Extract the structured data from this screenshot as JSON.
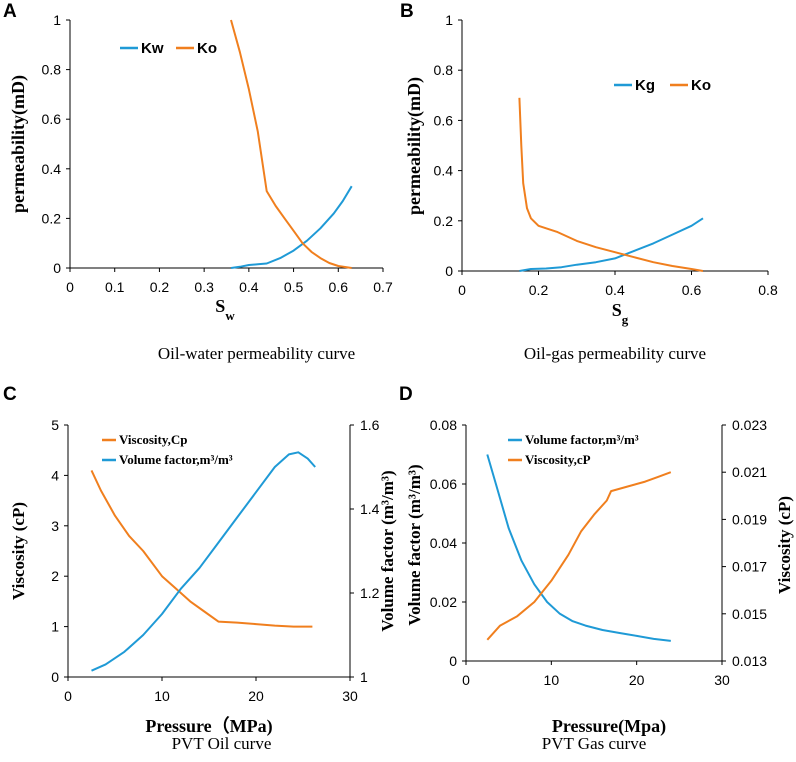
{
  "colors": {
    "blue": "#1f9ad6",
    "orange": "#f07f1e"
  },
  "chart_data": [
    {
      "panel": "A",
      "type": "line",
      "caption": "Oil-water permeability curve",
      "ylabel": "permeability(mD)",
      "xlabel": {
        "main": "S",
        "sub": "w"
      },
      "xlim": [
        0,
        0.7
      ],
      "ylim": [
        0,
        1
      ],
      "xticks": [
        "0",
        "0.1",
        "0.2",
        "0.3",
        "0.4",
        "0.5",
        "0.6",
        "0.7"
      ],
      "yticks": [
        "0",
        "0.2",
        "0.4",
        "0.6",
        "0.8",
        "1"
      ],
      "legend": [
        "Kw",
        "Ko"
      ],
      "series": [
        {
          "name": "Kw",
          "color": "blue",
          "axis": "left",
          "x": [
            0.36,
            0.38,
            0.4,
            0.42,
            0.44,
            0.47,
            0.5,
            0.53,
            0.56,
            0.59,
            0.61,
            0.63
          ],
          "y": [
            0.0,
            0.005,
            0.012,
            0.015,
            0.018,
            0.04,
            0.07,
            0.11,
            0.16,
            0.22,
            0.27,
            0.33
          ]
        },
        {
          "name": "Ko",
          "color": "orange",
          "axis": "left",
          "x": [
            0.36,
            0.38,
            0.4,
            0.42,
            0.44,
            0.46,
            0.48,
            0.5,
            0.52,
            0.54,
            0.56,
            0.58,
            0.6,
            0.63
          ],
          "y": [
            1.0,
            0.87,
            0.72,
            0.55,
            0.31,
            0.25,
            0.2,
            0.15,
            0.1,
            0.065,
            0.04,
            0.02,
            0.008,
            0.0
          ]
        }
      ]
    },
    {
      "panel": "B",
      "type": "line",
      "caption": "Oil-gas permeability curve",
      "ylabel": "permeability(mD)",
      "xlabel": {
        "main": "S",
        "sub": "g"
      },
      "xlim": [
        0,
        0.8
      ],
      "ylim": [
        0,
        1
      ],
      "xticks": [
        "0",
        "0.2",
        "0.4",
        "0.6",
        "0.8"
      ],
      "yticks": [
        "0",
        "0.2",
        "0.4",
        "0.6",
        "0.8",
        "1"
      ],
      "legend": [
        "Kg",
        "Ko"
      ],
      "series": [
        {
          "name": "Kg",
          "color": "blue",
          "axis": "left",
          "x": [
            0.15,
            0.18,
            0.22,
            0.26,
            0.3,
            0.35,
            0.4,
            0.45,
            0.5,
            0.55,
            0.6,
            0.63
          ],
          "y": [
            0.0,
            0.008,
            0.01,
            0.015,
            0.025,
            0.035,
            0.05,
            0.08,
            0.11,
            0.145,
            0.18,
            0.21
          ]
        },
        {
          "name": "Ko",
          "color": "orange",
          "axis": "left",
          "x": [
            0.15,
            0.155,
            0.16,
            0.17,
            0.18,
            0.2,
            0.22,
            0.25,
            0.3,
            0.35,
            0.4,
            0.45,
            0.5,
            0.55,
            0.6,
            0.63
          ],
          "y": [
            0.69,
            0.5,
            0.35,
            0.25,
            0.21,
            0.18,
            0.17,
            0.155,
            0.12,
            0.095,
            0.075,
            0.055,
            0.035,
            0.02,
            0.008,
            0.0
          ]
        }
      ]
    },
    {
      "panel": "C",
      "type": "line",
      "caption": "PVT Oil curve",
      "ylabel": "Viscosity (cP)",
      "y2label": "Volume factor (m³/m³)",
      "xlabel": {
        "main": "Pressure（MPa)",
        "sub": ""
      },
      "xlim": [
        0,
        30
      ],
      "ylim": [
        0,
        5
      ],
      "y2lim": [
        1,
        1.6
      ],
      "xticks": [
        "0",
        "10",
        "20",
        "30"
      ],
      "yticks": [
        "0",
        "1",
        "2",
        "3",
        "4",
        "5"
      ],
      "y2ticks": [
        "1",
        "1.2",
        "1.4",
        "1.6"
      ],
      "legend": [
        "Viscosity,Cp",
        "Volume factor,m³/m³"
      ],
      "series": [
        {
          "name": "Viscosity,Cp",
          "color": "orange",
          "axis": "left",
          "x": [
            2.5,
            3.5,
            5,
            6.5,
            8,
            10,
            11.5,
            13,
            14.5,
            16,
            18,
            20,
            22,
            24,
            26
          ],
          "y": [
            4.1,
            3.7,
            3.2,
            2.8,
            2.5,
            2.0,
            1.75,
            1.5,
            1.3,
            1.1,
            1.08,
            1.05,
            1.02,
            1.0,
            1.0
          ]
        },
        {
          "name": "Volume factor,m³/m³",
          "color": "blue",
          "axis": "right",
          "x": [
            2.5,
            4,
            6,
            8,
            10,
            12,
            14,
            16,
            18,
            20,
            22,
            23.5,
            24.5,
            25.5,
            26.3
          ],
          "y": [
            1.015,
            1.03,
            1.06,
            1.1,
            1.15,
            1.21,
            1.26,
            1.32,
            1.38,
            1.44,
            1.5,
            1.53,
            1.535,
            1.52,
            1.5
          ]
        }
      ]
    },
    {
      "panel": "D",
      "type": "line",
      "caption": "PVT Gas curve",
      "ylabel": "Volume factor (m³/m³)",
      "y2label": "Viscosity (cP)",
      "xlabel": {
        "main": "Pressure(Mpa)",
        "sub": ""
      },
      "xlim": [
        0,
        30
      ],
      "ylim": [
        0,
        0.08
      ],
      "y2lim": [
        0.013,
        0.023
      ],
      "xticks": [
        "0",
        "10",
        "20",
        "30"
      ],
      "yticks": [
        "0",
        "0.02",
        "0.04",
        "0.06",
        "0.08"
      ],
      "y2ticks": [
        "0.013",
        "0.015",
        "0.017",
        "0.019",
        "0.021",
        "0.023"
      ],
      "legend": [
        "Volume factor,m³/m³",
        "Viscosity,cP"
      ],
      "series": [
        {
          "name": "Volume factor,m³/m³",
          "color": "blue",
          "axis": "left",
          "x": [
            2.5,
            3.5,
            5,
            6.5,
            8,
            9.5,
            11,
            12.5,
            14,
            16,
            18,
            20,
            22,
            24
          ],
          "y": [
            0.07,
            0.06,
            0.045,
            0.034,
            0.026,
            0.02,
            0.016,
            0.0135,
            0.012,
            0.0105,
            0.0095,
            0.0085,
            0.0075,
            0.0068
          ]
        },
        {
          "name": "Viscosity,cP",
          "color": "orange",
          "axis": "right",
          "x": [
            2.5,
            4,
            6,
            8,
            10,
            12,
            13.5,
            15,
            16.5,
            17,
            19,
            21,
            22.5,
            24
          ],
          "y": [
            0.0139,
            0.0145,
            0.0149,
            0.0155,
            0.0164,
            0.0175,
            0.0185,
            0.0192,
            0.0198,
            0.0202,
            0.0204,
            0.0206,
            0.0208,
            0.021
          ]
        }
      ]
    }
  ]
}
